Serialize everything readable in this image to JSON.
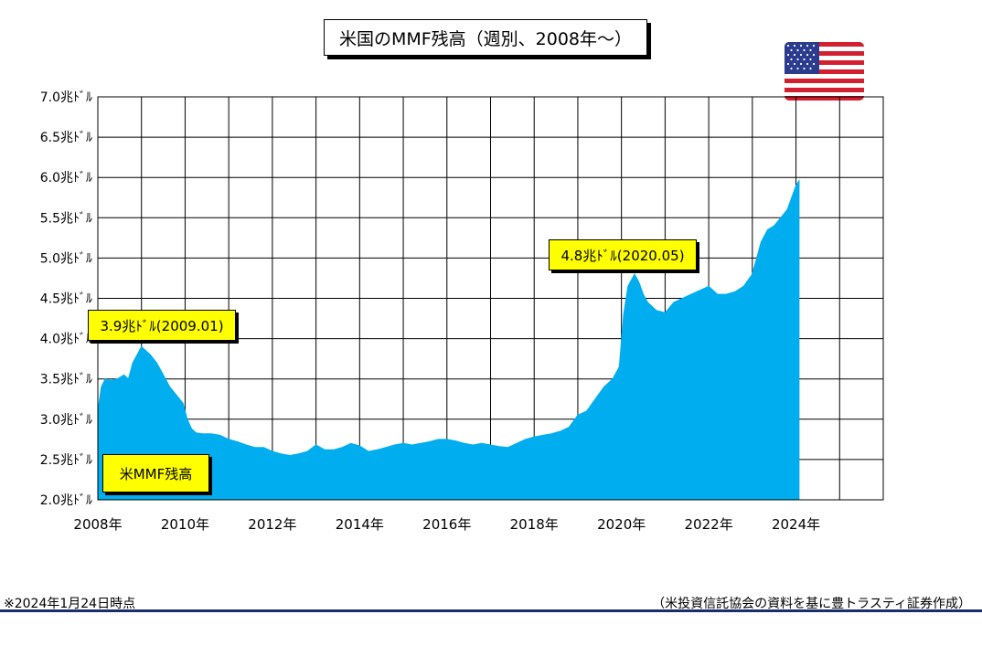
{
  "title": "米国のMMF残高（週別、2008年～）",
  "annotations": {
    "peak_2009": "3.9兆ﾄﾞﾙ(2009.01)",
    "peak_2020": "4.8兆ﾄﾞﾙ(2020.05)",
    "series_label": "米MMF残高"
  },
  "footer": {
    "as_of": "※2024年1月24日時点",
    "source": "（米投資信託協会の資料を基に豊トラスティ証券作成）"
  },
  "flag_icon": "us-flag",
  "colors": {
    "series": "#00adef",
    "grid": "#000000",
    "callout": "#ffff00",
    "footer_rule": "#1a2e6b"
  },
  "chart_data": {
    "type": "area",
    "title": "米国のMMF残高（週別、2008年～）",
    "xlabel": "",
    "ylabel": "",
    "xlim": [
      2008.0,
      2026.0
    ],
    "ylim": [
      2.0,
      7.0
    ],
    "x_ticks": [
      {
        "value": 2008,
        "label": "2008年"
      },
      {
        "value": 2010,
        "label": "2010年"
      },
      {
        "value": 2012,
        "label": "2012年"
      },
      {
        "value": 2014,
        "label": "2014年"
      },
      {
        "value": 2016,
        "label": "2016年"
      },
      {
        "value": 2018,
        "label": "2018年"
      },
      {
        "value": 2020,
        "label": "2020年"
      },
      {
        "value": 2022,
        "label": "2022年"
      },
      {
        "value": 2024,
        "label": "2024年"
      }
    ],
    "y_ticks": [
      {
        "value": 2.0,
        "label": "2.0兆ﾄﾞﾙ"
      },
      {
        "value": 2.5,
        "label": "2.5兆ﾄﾞﾙ"
      },
      {
        "value": 3.0,
        "label": "3.0兆ﾄﾞﾙ"
      },
      {
        "value": 3.5,
        "label": "3.5兆ﾄﾞﾙ"
      },
      {
        "value": 4.0,
        "label": "4.0兆ﾄﾞﾙ"
      },
      {
        "value": 4.5,
        "label": "4.5兆ﾄﾞﾙ"
      },
      {
        "value": 5.0,
        "label": "5.0兆ﾄﾞﾙ"
      },
      {
        "value": 5.5,
        "label": "5.5兆ﾄﾞﾙ"
      },
      {
        "value": 6.0,
        "label": "6.0兆ﾄﾞﾙ"
      },
      {
        "value": 6.5,
        "label": "6.5兆ﾄﾞﾙ"
      },
      {
        "value": 7.0,
        "label": "7.0兆ﾄﾞﾙ"
      }
    ],
    "grid": true,
    "series": [
      {
        "name": "米MMF残高",
        "x": [
          2008.0,
          2008.08,
          2008.17,
          2008.3,
          2008.45,
          2008.6,
          2008.7,
          2008.8,
          2008.9,
          2009.0,
          2009.1,
          2009.2,
          2009.35,
          2009.5,
          2009.65,
          2009.8,
          2009.95,
          2010.05,
          2010.15,
          2010.25,
          2010.4,
          2010.6,
          2010.8,
          2011.0,
          2011.2,
          2011.4,
          2011.6,
          2011.8,
          2012.0,
          2012.2,
          2012.4,
          2012.6,
          2012.8,
          2013.0,
          2013.2,
          2013.4,
          2013.6,
          2013.8,
          2014.0,
          2014.2,
          2014.4,
          2014.6,
          2014.8,
          2015.0,
          2015.2,
          2015.4,
          2015.6,
          2015.8,
          2016.0,
          2016.2,
          2016.4,
          2016.6,
          2016.8,
          2017.0,
          2017.2,
          2017.4,
          2017.6,
          2017.8,
          2018.0,
          2018.2,
          2018.4,
          2018.6,
          2018.8,
          2019.0,
          2019.2,
          2019.4,
          2019.6,
          2019.8,
          2019.95,
          2020.05,
          2020.15,
          2020.3,
          2020.4,
          2020.5,
          2020.6,
          2020.8,
          2021.0,
          2021.2,
          2021.4,
          2021.6,
          2021.8,
          2022.0,
          2022.2,
          2022.4,
          2022.6,
          2022.8,
          2023.0,
          2023.1,
          2023.2,
          2023.35,
          2023.5,
          2023.65,
          2023.8,
          2023.9,
          2024.0,
          2024.07
        ],
        "values": [
          3.1,
          3.4,
          3.5,
          3.48,
          3.5,
          3.55,
          3.5,
          3.7,
          3.8,
          3.9,
          3.85,
          3.8,
          3.7,
          3.55,
          3.4,
          3.3,
          3.2,
          3.0,
          2.88,
          2.83,
          2.82,
          2.82,
          2.8,
          2.75,
          2.72,
          2.68,
          2.65,
          2.65,
          2.6,
          2.57,
          2.55,
          2.57,
          2.6,
          2.68,
          2.62,
          2.62,
          2.65,
          2.7,
          2.67,
          2.6,
          2.62,
          2.65,
          2.68,
          2.7,
          2.68,
          2.7,
          2.72,
          2.75,
          2.75,
          2.73,
          2.7,
          2.68,
          2.7,
          2.68,
          2.66,
          2.65,
          2.7,
          2.75,
          2.78,
          2.8,
          2.82,
          2.85,
          2.9,
          3.05,
          3.1,
          3.25,
          3.4,
          3.5,
          3.65,
          4.3,
          4.65,
          4.8,
          4.7,
          4.55,
          4.45,
          4.35,
          4.32,
          4.45,
          4.5,
          4.55,
          4.6,
          4.65,
          4.55,
          4.55,
          4.58,
          4.65,
          4.8,
          5.0,
          5.2,
          5.35,
          5.4,
          5.5,
          5.6,
          5.75,
          5.9,
          5.96
        ]
      }
    ]
  }
}
